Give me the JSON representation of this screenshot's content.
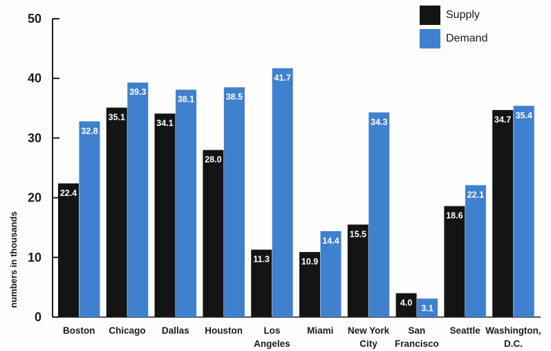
{
  "chart_data": {
    "type": "bar",
    "categories": [
      [
        "Boston"
      ],
      [
        "Chicago"
      ],
      [
        "Dallas"
      ],
      [
        "Houston"
      ],
      [
        "Los",
        "Angeles"
      ],
      [
        "Miami"
      ],
      [
        "New York",
        "City"
      ],
      [
        "San",
        "Francisco"
      ],
      [
        "Seattle"
      ],
      [
        "Washington,",
        "D.C."
      ]
    ],
    "series": [
      {
        "name": "Supply",
        "color": "#141414",
        "values": [
          22.4,
          35.1,
          34.1,
          28.0,
          11.3,
          10.9,
          15.5,
          4.0,
          18.6,
          34.7
        ]
      },
      {
        "name": "Demand",
        "color": "#3f80cf",
        "values": [
          32.8,
          39.3,
          38.1,
          38.5,
          41.7,
          14.4,
          34.3,
          3.1,
          22.1,
          35.4
        ]
      }
    ],
    "ylabel": "numbers in thousands",
    "ylim": [
      0,
      50
    ],
    "yticks": [
      "0",
      "10",
      "20",
      "30",
      "40",
      "50"
    ],
    "grid": false,
    "legend_position": "top-right"
  }
}
